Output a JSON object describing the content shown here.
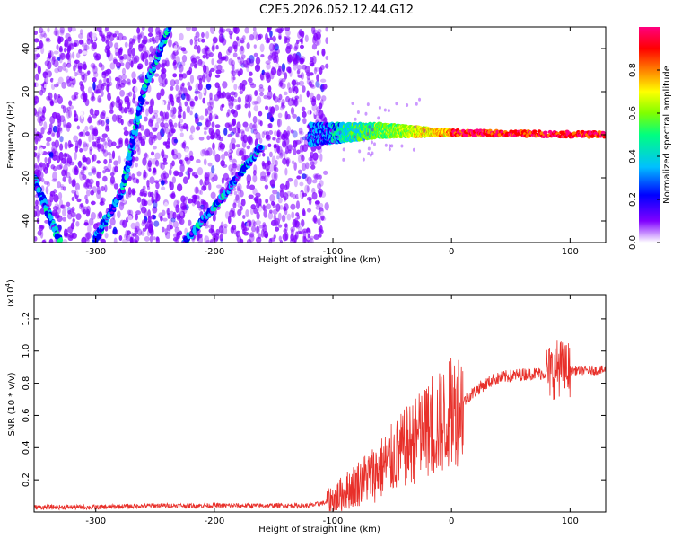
{
  "title": "C2E5.2026.052.12.44.G12",
  "chart_data": [
    {
      "type": "heatmap",
      "title": "C2E5.2026.052.12.44.G12",
      "xlabel": "Height of straight line (km)",
      "ylabel": "Frequency (Hz)",
      "xlim": [
        -352,
        130
      ],
      "ylim": [
        -50,
        50
      ],
      "x_ticks": [
        -300,
        -200,
        -100,
        0,
        100
      ],
      "x_tick_labels": [
        "-300",
        "-200",
        "-100",
        "0",
        "100"
      ],
      "y_ticks": [
        -40,
        -20,
        0,
        20,
        40
      ],
      "y_tick_labels": [
        "-40",
        "-20",
        "0",
        "20",
        "40"
      ],
      "features": [
        {
          "name": "diffuse noise region",
          "x_range": [
            -352,
            -105
          ]
        },
        {
          "name": "diagonal line A",
          "points": [
            [
              -352,
              -20
            ],
            [
              -330,
              -50
            ]
          ]
        },
        {
          "name": "diagonal line B",
          "points": [
            [
              -302,
              -50
            ],
            [
              -277,
              -25
            ],
            [
              -260,
              20
            ],
            [
              -238,
              50
            ]
          ]
        },
        {
          "name": "diagonal line C",
          "points": [
            [
              -225,
              -50
            ],
            [
              -195,
              -30
            ],
            [
              -160,
              -5
            ]
          ]
        },
        {
          "name": "direct signal band",
          "points": [
            [
              -120,
              0
            ],
            [
              -60,
              2
            ],
            [
              -10,
              1
            ],
            [
              130,
              0
            ]
          ]
        }
      ],
      "colorbar": {
        "label": "Normalized spectral amplitude",
        "range": [
          0,
          1
        ],
        "ticks": [
          0.0,
          0.2,
          0.4,
          0.6,
          0.8
        ],
        "tick_labels": [
          "0.0",
          "0.2",
          "0.4",
          "0.6",
          "0.8"
        ],
        "colors": [
          "#ffffff",
          "#8000ff",
          "#0000ff",
          "#00c0ff",
          "#00ff80",
          "#80ff00",
          "#ffff00",
          "#ff8000",
          "#ff0000",
          "#ff0080"
        ]
      }
    },
    {
      "type": "line",
      "xlabel": "Height of straight line (km)",
      "ylabel": "SNR (10 * v/v)",
      "y_multiplier": "(x10",
      "y_multiplier_exp": "4",
      "y_multiplier_close": ")",
      "xlim": [
        -352,
        130
      ],
      "ylim": [
        0,
        1.35
      ],
      "x_ticks": [
        -300,
        -200,
        -100,
        0,
        100
      ],
      "x_tick_labels": [
        "-300",
        "-200",
        "-100",
        "0",
        "100"
      ],
      "y_ticks": [
        0.2,
        0.4,
        0.6,
        0.8,
        1.0,
        1.2
      ],
      "y_tick_labels": [
        "0.2",
        "0.4",
        "0.6",
        "0.8",
        "1.0",
        "1.2"
      ],
      "series": [
        {
          "name": "SNR",
          "color": "#e8302a",
          "x": [
            -352,
            -300,
            -250,
            -200,
            -150,
            -120,
            -105,
            -95,
            -85,
            -75,
            -65,
            -55,
            -45,
            -35,
            -25,
            -15,
            -5,
            5,
            15,
            25,
            35,
            45,
            55,
            65,
            75,
            85,
            90,
            95,
            100,
            110,
            120,
            130
          ],
          "y": [
            0.03,
            0.03,
            0.04,
            0.04,
            0.04,
            0.04,
            0.06,
            0.1,
            0.15,
            0.2,
            0.24,
            0.3,
            0.36,
            0.42,
            0.48,
            0.52,
            0.58,
            0.65,
            0.72,
            0.78,
            0.82,
            0.84,
            0.85,
            0.86,
            0.86,
            0.87,
            0.9,
            0.88,
            0.88,
            0.88,
            0.88,
            0.88
          ]
        }
      ]
    }
  ]
}
